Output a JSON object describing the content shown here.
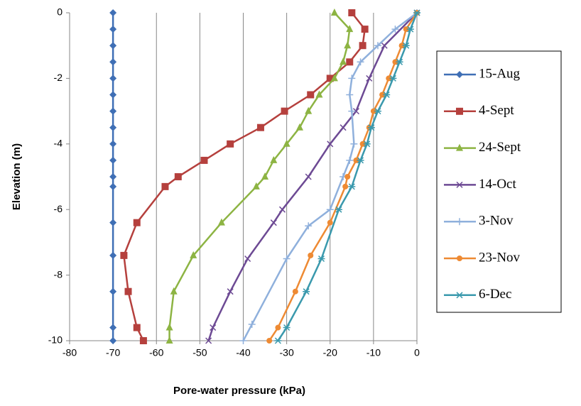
{
  "chart_data": {
    "type": "line",
    "x_label": "Pore-water pressure (kPa)",
    "y_label": "Elevation (m)",
    "xlim": [
      -80,
      0
    ],
    "ylim": [
      -10,
      0
    ],
    "xticks": [
      -80,
      -70,
      -60,
      -50,
      -40,
      -30,
      -20,
      -10,
      0
    ],
    "yticks": [
      -10,
      -8,
      -6,
      -4,
      -2,
      0
    ],
    "grid": "x",
    "series": [
      {
        "name": "15-Aug",
        "color": "#3f6fb5",
        "marker": "diamond",
        "x": [
          -70,
          -70,
          -70,
          -70,
          -70,
          -70,
          -70,
          -70,
          -70,
          -70,
          -70,
          -70,
          -70,
          -70,
          -70,
          -70,
          -70
        ],
        "y": [
          0,
          -0.5,
          -1,
          -1.5,
          -2,
          -2.5,
          -3,
          -3.5,
          -4,
          -4.5,
          -5,
          -5.3,
          -6.4,
          -7.4,
          -8.5,
          -9.6,
          -10
        ]
      },
      {
        "name": "4-Sept",
        "color": "#b5403d",
        "marker": "square",
        "x": [
          -15,
          -12,
          -12.5,
          -15.5,
          -20,
          -24.5,
          -30.5,
          -36,
          -43,
          -49,
          -55,
          -58,
          -64.5,
          -67.5,
          -66.5,
          -64.5,
          -63
        ],
        "y": [
          0,
          -0.5,
          -1,
          -1.5,
          -2,
          -2.5,
          -3,
          -3.5,
          -4,
          -4.5,
          -5,
          -5.3,
          -6.4,
          -7.4,
          -8.5,
          -9.6,
          -10
        ]
      },
      {
        "name": "24-Sept",
        "color": "#8db443",
        "marker": "triangle",
        "x": [
          -19,
          -15.5,
          -16,
          -17,
          -19,
          -22.5,
          -25,
          -27,
          -30,
          -33,
          -35,
          -37,
          -45,
          -51.5,
          -56,
          -57,
          -57
        ],
        "y": [
          0,
          -0.5,
          -1,
          -1.5,
          -2,
          -2.5,
          -3,
          -3.5,
          -4,
          -4.5,
          -5,
          -5.3,
          -6.4,
          -7.4,
          -8.5,
          -9.6,
          -10
        ]
      },
      {
        "name": "14-Oct",
        "color": "#6d4a94",
        "marker": "x",
        "x": [
          0,
          -7.5,
          -11,
          -14,
          -17,
          -20,
          -25,
          -31,
          -33,
          -39,
          -43,
          -47,
          -48
        ],
        "y": [
          0,
          -1,
          -2,
          -3,
          -3.5,
          -4,
          -5,
          -6,
          -6.4,
          -7.5,
          -8.5,
          -9.6,
          -10
        ]
      },
      {
        "name": "3-Nov",
        "color": "#8fb0dc",
        "marker": "plus",
        "x": [
          0,
          -5,
          -9,
          -13,
          -15,
          -15.5,
          -15,
          -14.5,
          -15.5,
          -17,
          -20,
          -25,
          -30,
          -38,
          -40
        ],
        "y": [
          0,
          -0.5,
          -1,
          -1.5,
          -2,
          -2.5,
          -3,
          -4,
          -4.5,
          -5,
          -6,
          -6.5,
          -7.5,
          -9.5,
          -10
        ]
      },
      {
        "name": "23-Nov",
        "color": "#ee8a33",
        "marker": "circle",
        "x": [
          0,
          -2.5,
          -3.5,
          -5,
          -6.5,
          -8,
          -10,
          -11,
          -12.5,
          -14,
          -16,
          -16.5,
          -20,
          -24.5,
          -28,
          -32,
          -34
        ],
        "y": [
          0,
          -0.5,
          -1,
          -1.5,
          -2,
          -2.5,
          -3,
          -3.5,
          -4,
          -4.5,
          -5,
          -5.3,
          -6.4,
          -7.4,
          -8.5,
          -9.6,
          -10
        ]
      },
      {
        "name": "6-Dec",
        "color": "#3a99ad",
        "marker": "star",
        "x": [
          0,
          -1.5,
          -2.5,
          -4,
          -5.5,
          -7,
          -9,
          -10.5,
          -11.5,
          -13,
          -15,
          -18,
          -22,
          -25.5,
          -30,
          -32
        ],
        "y": [
          0,
          -0.5,
          -1,
          -1.5,
          -2,
          -2.5,
          -3,
          -3.5,
          -4,
          -4.5,
          -5.3,
          -6,
          -7.5,
          -8.5,
          -9.6,
          -10
        ]
      }
    ]
  }
}
